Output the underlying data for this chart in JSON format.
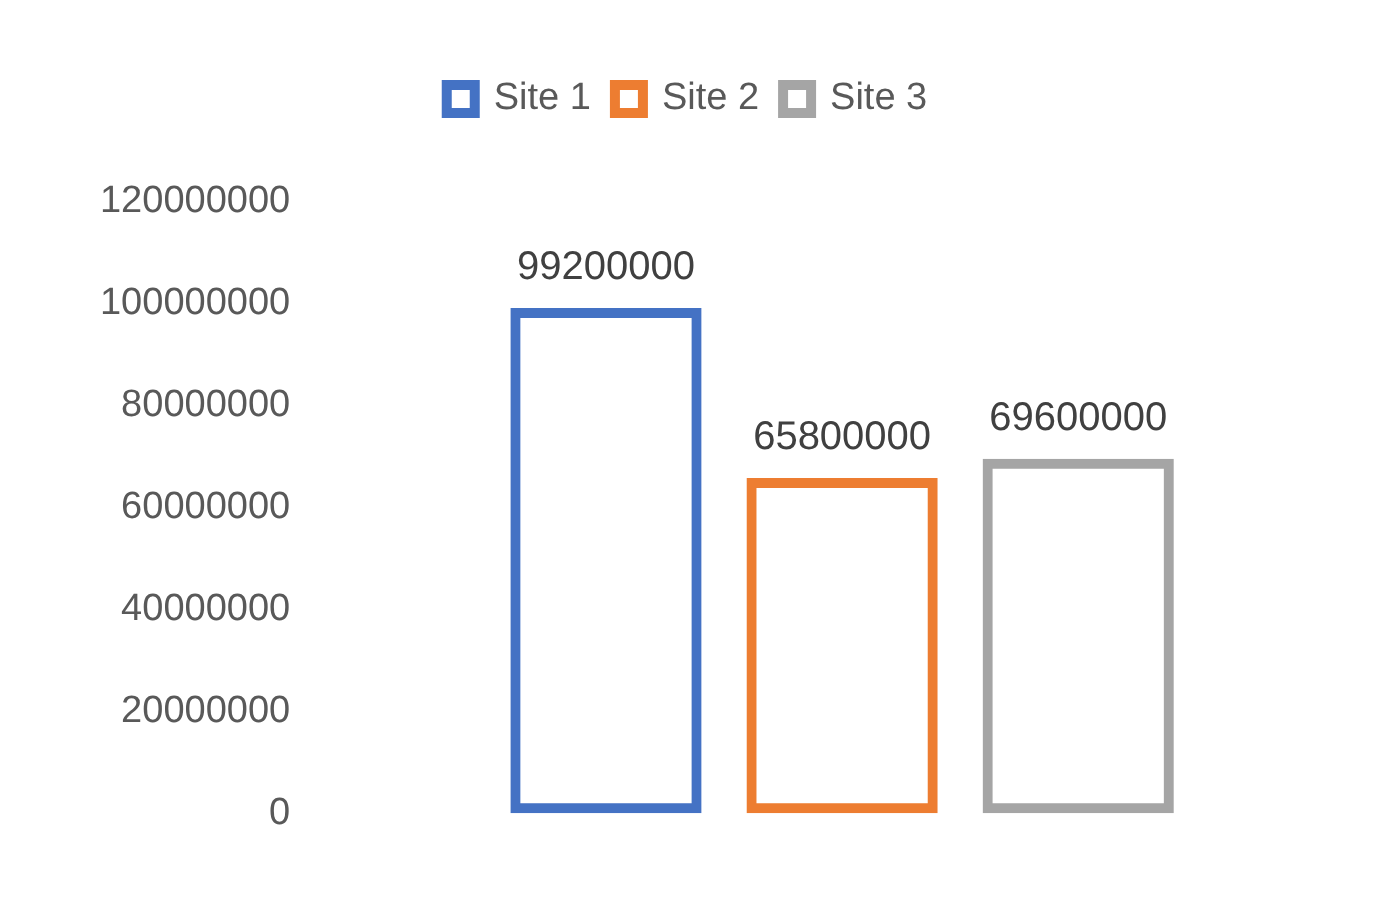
{
  "chart_data": {
    "type": "bar",
    "categories": [
      null
    ],
    "series": [
      {
        "name": "Site 1",
        "color": "#4472c4",
        "values": [
          99200000
        ]
      },
      {
        "name": "Site 2",
        "color": "#ed7d31",
        "values": [
          65800000
        ]
      },
      {
        "name": "Site 3",
        "color": "#a5a5a5",
        "values": [
          69600000
        ]
      }
    ],
    "ylim": [
      0,
      120000000
    ],
    "yticks": [
      0,
      20000000,
      40000000,
      60000000,
      80000000,
      100000000,
      120000000
    ],
    "grid": false,
    "legend": "top",
    "data_labels": true
  }
}
